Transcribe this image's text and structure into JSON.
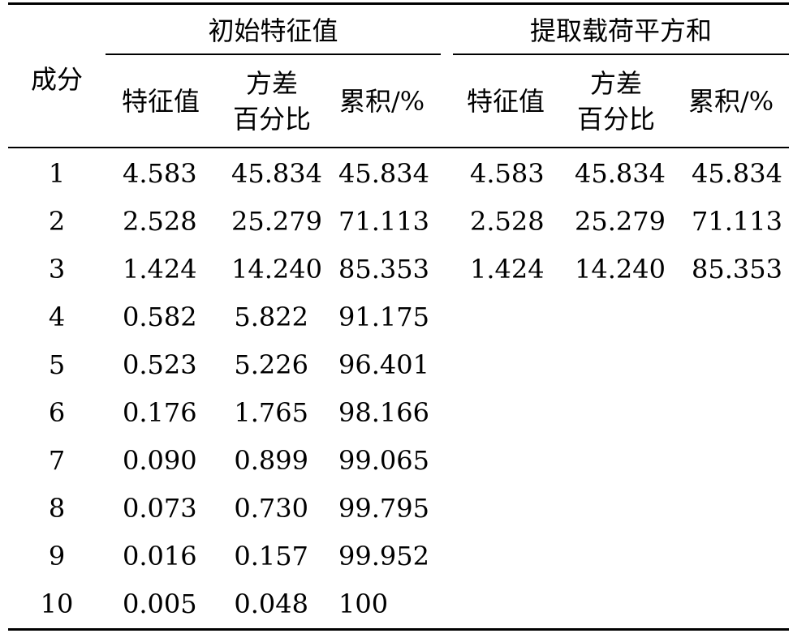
{
  "table": {
    "component_header": "成分",
    "groups": [
      {
        "title": "初始特征值"
      },
      {
        "title": "提取载荷平方和"
      }
    ],
    "sub_headers": {
      "eigenvalue": "特征值",
      "variance_line1": "方差",
      "variance_line2": "百分比",
      "cumulative_word": "累积",
      "cumulative_unit": "/%"
    },
    "rows": [
      {
        "component": "1",
        "init_eig": "4.583",
        "init_var": "45.834",
        "init_cum": "45.834",
        "ext_eig": "4.583",
        "ext_var": "45.834",
        "ext_cum": "45.834"
      },
      {
        "component": "2",
        "init_eig": "2.528",
        "init_var": "25.279",
        "init_cum": "71.113",
        "ext_eig": "2.528",
        "ext_var": "25.279",
        "ext_cum": "71.113"
      },
      {
        "component": "3",
        "init_eig": "1.424",
        "init_var": "14.240",
        "init_cum": "85.353",
        "ext_eig": "1.424",
        "ext_var": "14.240",
        "ext_cum": "85.353"
      },
      {
        "component": "4",
        "init_eig": "0.582",
        "init_var": "5.822",
        "init_cum": "91.175",
        "ext_eig": "",
        "ext_var": "",
        "ext_cum": ""
      },
      {
        "component": "5",
        "init_eig": "0.523",
        "init_var": "5.226",
        "init_cum": "96.401",
        "ext_eig": "",
        "ext_var": "",
        "ext_cum": ""
      },
      {
        "component": "6",
        "init_eig": "0.176",
        "init_var": "1.765",
        "init_cum": "98.166",
        "ext_eig": "",
        "ext_var": "",
        "ext_cum": ""
      },
      {
        "component": "7",
        "init_eig": "0.090",
        "init_var": "0.899",
        "init_cum": "99.065",
        "ext_eig": "",
        "ext_var": "",
        "ext_cum": ""
      },
      {
        "component": "8",
        "init_eig": "0.073",
        "init_var": "0.730",
        "init_cum": "99.795",
        "ext_eig": "",
        "ext_var": "",
        "ext_cum": ""
      },
      {
        "component": "9",
        "init_eig": "0.016",
        "init_var": "0.157",
        "init_cum": "99.952",
        "ext_eig": "",
        "ext_var": "",
        "ext_cum": ""
      },
      {
        "component": "10",
        "init_eig": "0.005",
        "init_var": "0.048",
        "init_cum": "100",
        "ext_eig": "",
        "ext_var": "",
        "ext_cum": ""
      }
    ]
  }
}
